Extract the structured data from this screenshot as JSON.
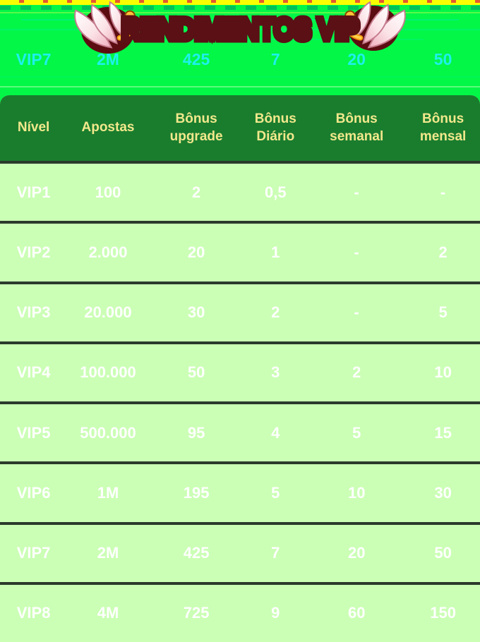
{
  "title": {
    "text": "RENDIMENTOS VIP"
  },
  "background_row": {
    "cells": [
      "VIP7",
      "2M",
      "425",
      "7",
      "20",
      "50"
    ]
  },
  "table": {
    "headers": [
      "Nível",
      "Apostas",
      "Bônus\nupgrade",
      "Bônus\nDiário",
      "Bônus\nsemanal",
      "Bônus\nmensal"
    ],
    "rows": [
      [
        "VIP1",
        "100",
        "2",
        "0,5",
        "-",
        "-"
      ],
      [
        "VIP2",
        "2.000",
        "20",
        "1",
        "-",
        "2"
      ],
      [
        "VIP3",
        "20.000",
        "30",
        "2",
        "-",
        "5"
      ],
      [
        "VIP4",
        "100.000",
        "50",
        "3",
        "2",
        "10"
      ],
      [
        "VIP5",
        "500.000",
        "95",
        "4",
        "5",
        "15"
      ],
      [
        "VIP6",
        "1M",
        "195",
        "5",
        "10",
        "30"
      ],
      [
        "VIP7",
        "2M",
        "425",
        "7",
        "20",
        "50"
      ],
      [
        "VIP8",
        "4M",
        "725",
        "9",
        "60",
        "150"
      ]
    ]
  },
  "colors": {
    "page_bg": "#02F747",
    "stripe_yellow": "#FAFF00",
    "stripe_red": "#E03A3A",
    "ghost_text": "#1FF0EC",
    "header_bg": "#1A7D2E",
    "header_text": "#F2E88C",
    "row_bg": "#CBFFB5",
    "row_text": "#FFFFFF",
    "separator": "#2B3A2C",
    "title_gold_light": "#FFE977",
    "title_gold_dark": "#F58A1B",
    "title_outline": "#5A1014",
    "wing_shadow": "#5C0D12"
  }
}
